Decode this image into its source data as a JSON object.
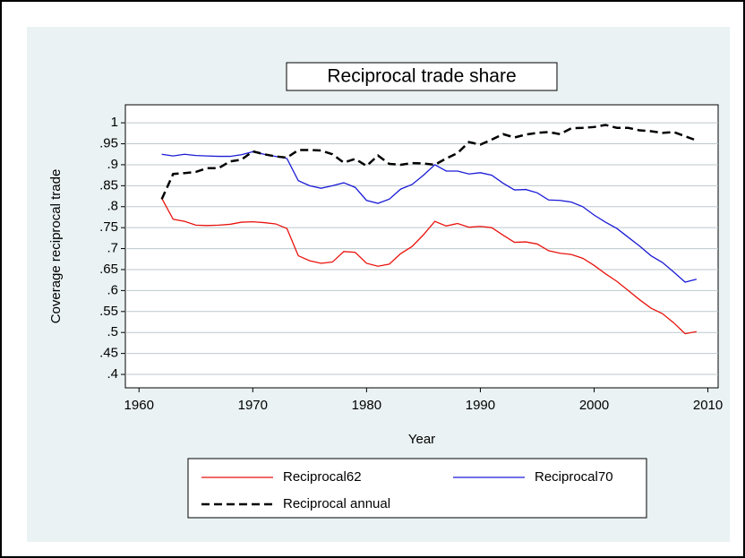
{
  "chart_data": {
    "type": "line",
    "title": "Reciprocal trade share",
    "x_label": "Year",
    "y_label": "Coverage reciprocal trade",
    "x": [
      1962,
      1963,
      1964,
      1965,
      1966,
      1967,
      1968,
      1969,
      1970,
      1971,
      1972,
      1973,
      1974,
      1975,
      1976,
      1977,
      1978,
      1979,
      1980,
      1981,
      1982,
      1983,
      1984,
      1985,
      1986,
      1987,
      1988,
      1989,
      1990,
      1991,
      1992,
      1993,
      1994,
      1995,
      1996,
      1997,
      1998,
      1999,
      2000,
      2001,
      2002,
      2003,
      2004,
      2005,
      2006,
      2007,
      2008,
      2009
    ],
    "series": [
      {
        "name": "Reciprocal62",
        "color": "#e8130e",
        "style": "solid",
        "values": [
          0.82,
          0.77,
          0.765,
          0.756,
          0.755,
          0.756,
          0.758,
          0.763,
          0.764,
          0.762,
          0.759,
          0.748,
          0.683,
          0.671,
          0.665,
          0.668,
          0.693,
          0.691,
          0.665,
          0.658,
          0.663,
          0.688,
          0.705,
          0.733,
          0.765,
          0.754,
          0.76,
          0.751,
          0.753,
          0.75,
          0.732,
          0.715,
          0.716,
          0.711,
          0.695,
          0.689,
          0.686,
          0.677,
          0.66,
          0.64,
          0.622,
          0.6,
          0.578,
          0.558,
          0.545,
          0.523,
          0.497,
          0.502
        ]
      },
      {
        "name": "Reciprocal70",
        "color": "#1a1ad6",
        "style": "solid",
        "values": [
          0.925,
          0.921,
          0.925,
          0.922,
          0.921,
          0.92,
          0.92,
          0.924,
          0.931,
          0.925,
          0.92,
          0.915,
          0.862,
          0.85,
          0.844,
          0.85,
          0.857,
          0.846,
          0.815,
          0.808,
          0.818,
          0.842,
          0.853,
          0.875,
          0.9,
          0.885,
          0.885,
          0.878,
          0.881,
          0.875,
          0.856,
          0.84,
          0.841,
          0.833,
          0.816,
          0.815,
          0.811,
          0.8,
          0.78,
          0.763,
          0.748,
          0.727,
          0.706,
          0.683,
          0.667,
          0.644,
          0.62,
          0.627
        ]
      },
      {
        "name": "Reciprocal annual",
        "color": "#000000",
        "style": "dashed",
        "values": [
          0.818,
          0.878,
          0.88,
          0.883,
          0.892,
          0.892,
          0.908,
          0.912,
          0.932,
          0.925,
          0.92,
          0.917,
          0.935,
          0.935,
          0.934,
          0.925,
          0.905,
          0.914,
          0.897,
          0.922,
          0.902,
          0.9,
          0.904,
          0.903,
          0.9,
          0.915,
          0.928,
          0.954,
          0.948,
          0.96,
          0.973,
          0.965,
          0.972,
          0.976,
          0.978,
          0.973,
          0.987,
          0.988,
          0.99,
          0.995,
          0.988,
          0.988,
          0.982,
          0.98,
          0.976,
          0.978,
          0.968,
          0.958
        ]
      }
    ],
    "xlim": [
      1958.8,
      2010.9
    ],
    "xticks": [
      1960,
      1970,
      1980,
      1990,
      2000,
      2010
    ],
    "ylim": [
      0.368,
      1.043
    ],
    "yticks": [
      {
        "value": 1,
        "label": "1"
      },
      {
        "value": 0.95,
        "label": ".95"
      },
      {
        "value": 0.9,
        "label": ".9"
      },
      {
        "value": 0.85,
        "label": ".85"
      },
      {
        "value": 0.8,
        "label": ".8"
      },
      {
        "value": 0.75,
        "label": ".75"
      },
      {
        "value": 0.7,
        "label": ".7"
      },
      {
        "value": 0.65,
        "label": ".65"
      },
      {
        "value": 0.6,
        "label": ".6"
      },
      {
        "value": 0.55,
        "label": ".55"
      },
      {
        "value": 0.5,
        "label": ".5"
      },
      {
        "value": 0.45,
        "label": ".45"
      },
      {
        "value": 0.4,
        "label": ".4"
      }
    ],
    "grid": true
  }
}
